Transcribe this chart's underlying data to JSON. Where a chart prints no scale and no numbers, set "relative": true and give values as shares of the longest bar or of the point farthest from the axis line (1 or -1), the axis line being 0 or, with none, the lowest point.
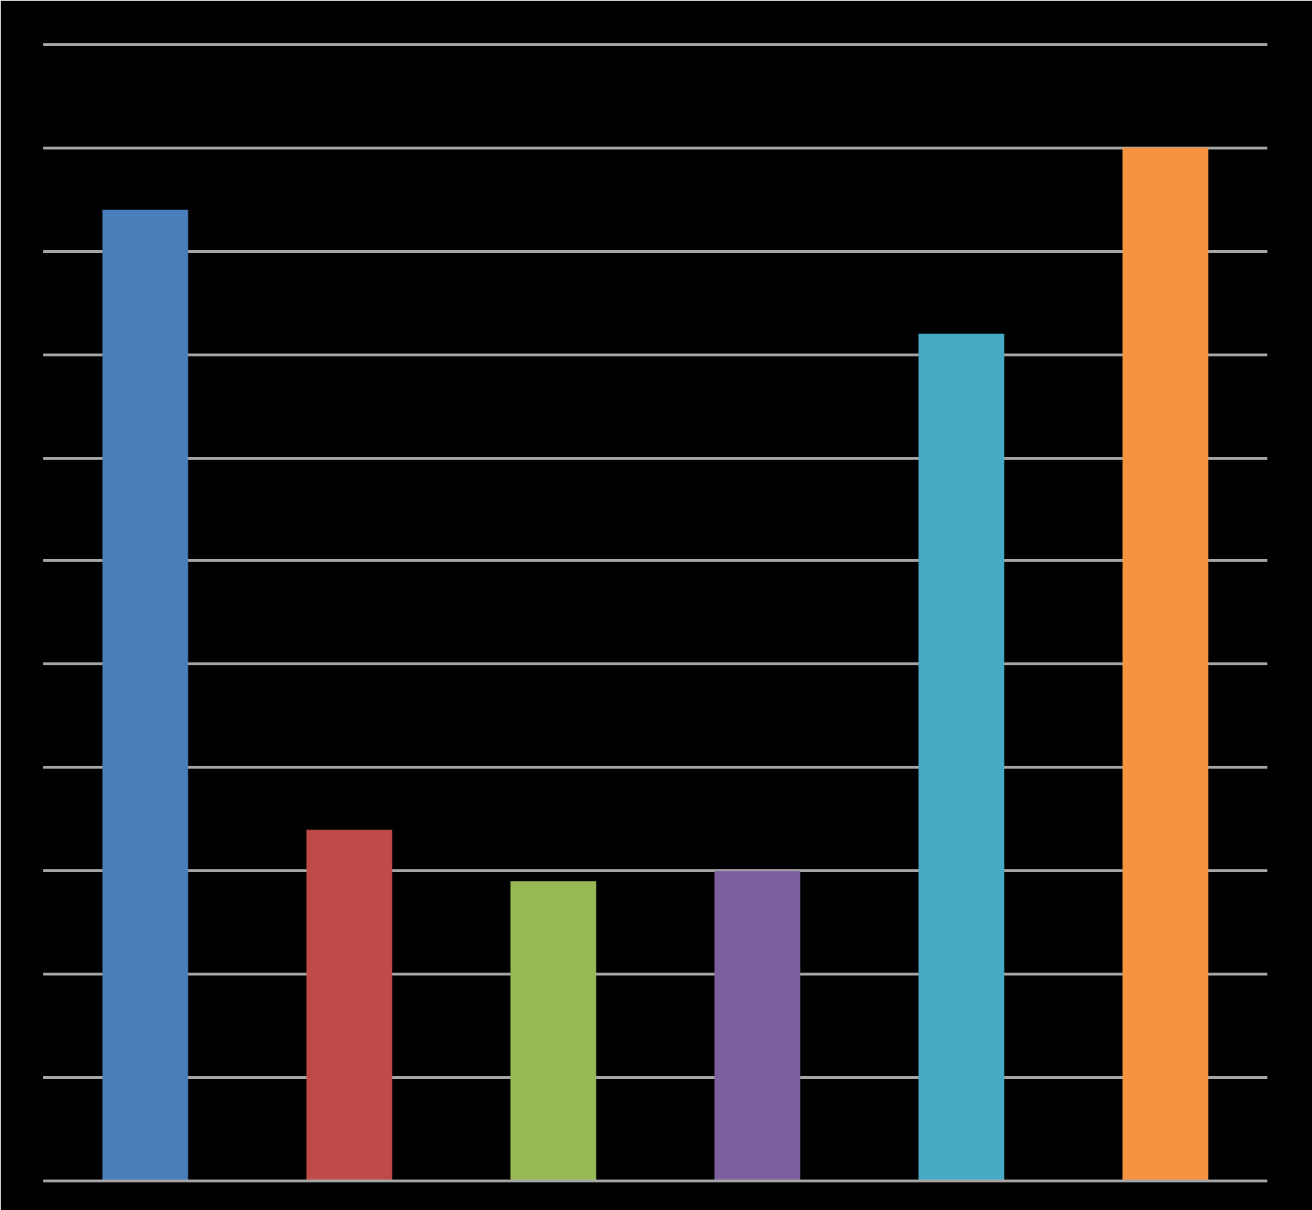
{
  "chart_data": {
    "type": "bar",
    "relative": true,
    "grid": "y",
    "categories": [
      null,
      null,
      null,
      null,
      null,
      null
    ],
    "values": [
      0.94,
      0.34,
      0.29,
      0.3,
      0.82,
      1.0
    ],
    "colors": [
      "#4a7ebb",
      "#be4b48",
      "#98b954",
      "#7d60a0",
      "#46aac5",
      "#f69240"
    ]
  }
}
